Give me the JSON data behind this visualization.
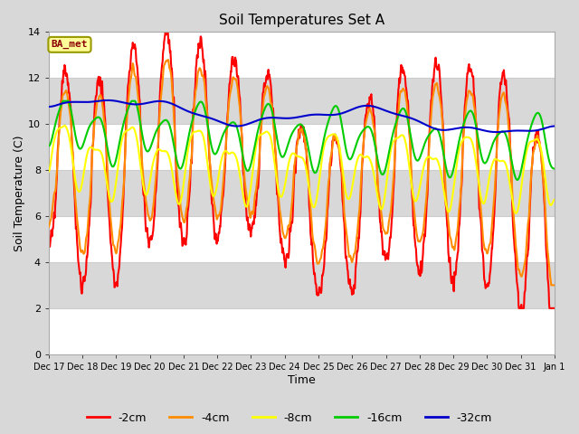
{
  "title": "Soil Temperatures Set A",
  "xlabel": "Time",
  "ylabel": "Soil Temperature (C)",
  "ylim": [
    0,
    14
  ],
  "yticks": [
    0,
    2,
    4,
    6,
    8,
    10,
    12,
    14
  ],
  "annotation_text": "BA_met",
  "annotation_color": "#8B0000",
  "annotation_bg": "#FFFF99",
  "annotation_edge": "#999900",
  "line_colors": {
    "-2cm": "#FF0000",
    "-4cm": "#FF8C00",
    "-8cm": "#FFFF00",
    "-16cm": "#00CC00",
    "-32cm": "#0000CD"
  },
  "background_color": "#D8D8D8",
  "plot_bg_color": "#D8D8D8",
  "grid_color": "#FFFFFF",
  "x_tick_labels": [
    "Dec 17",
    "Dec 18",
    "Dec 19",
    "Dec 20",
    "Dec 21",
    "Dec 22",
    "Dec 23",
    "Dec 24",
    "Dec 25",
    "Dec 26",
    "Dec 27",
    "Dec 28",
    "Dec 29",
    "Dec 30",
    "Dec 31",
    "Jan 1"
  ],
  "legend_labels": [
    "-2cm",
    "-4cm",
    "-8cm",
    "-16cm",
    "-32cm"
  ],
  "legend_colors": [
    "#FF0000",
    "#FF8C00",
    "#FFFF00",
    "#00CC00",
    "#0000CD"
  ]
}
